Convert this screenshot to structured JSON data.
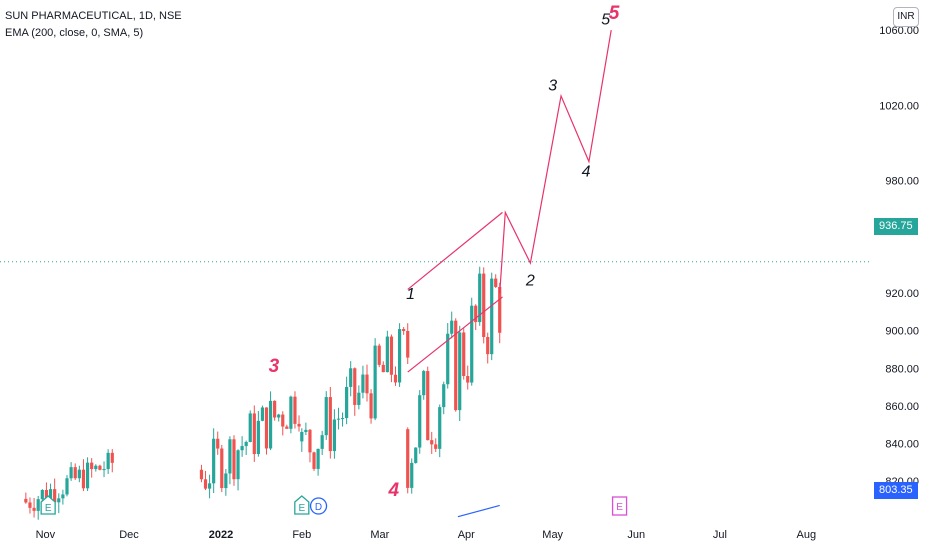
{
  "header": {
    "symbol_line": "SUN PHARMACEUTICAL, 1D, NSE",
    "indicator_line": "EMA (200, close, 0, SMA, 5)"
  },
  "currency": "INR",
  "colors": {
    "up": "#26a69a",
    "down": "#ef5350",
    "wave_line": "#e8336b",
    "wave_label_pink": "#e8336b",
    "wave_label_dark": "#131722",
    "ema": "#2962ff",
    "axis_text": "#131722",
    "grid_dotted": "#26a69a",
    "earnings_icon": "#26a69a",
    "dividend_icon": "#2962ff",
    "future_event_icon": "#d850d8"
  },
  "last_price": "936.75",
  "ema_value": "803.35",
  "price_axis": {
    "ticks": [
      "820.00",
      "840.00",
      "860.00",
      "880.00",
      "900.00",
      "920.00",
      "980.00",
      "1020.00",
      "1060.00"
    ]
  },
  "time_axis": {
    "labels": [
      "Nov",
      "Dec",
      "2022",
      "Feb",
      "Mar",
      "Apr",
      "May",
      "Jun",
      "Jul",
      "Aug"
    ],
    "bold": [
      "2022"
    ]
  },
  "chart_data": {
    "type": "candlestick",
    "ylim": [
      795,
      1067
    ],
    "x_range": [
      "2021-10-29",
      "2022-08-12"
    ],
    "candle_blocks": [
      {
        "start": "2021-10-25",
        "end": "2021-11-25",
        "approx_price_range": [
          800,
          835
        ]
      },
      {
        "start": "2021-12-27",
        "end": "2022-01-31",
        "approx_price_range": [
          805,
          875
        ]
      },
      {
        "start": "2022-02-01",
        "end": "2022-03-11",
        "approx_price_range": [
          815,
          902
        ]
      },
      {
        "start": "2022-03-11",
        "end": "2022-04-13",
        "approx_price_range": [
          808,
          940
        ]
      }
    ],
    "series": [
      {
        "name": "EMA (200, close, 0, SMA, 5)",
        "points": [
          [
            "2022-03-29",
            801
          ],
          [
            "2022-04-13",
            807
          ]
        ]
      }
    ],
    "wave_projection": [
      [
        "2022-04-13",
        920
      ],
      [
        "2022-04-15",
        963
      ],
      [
        "2022-04-24",
        936
      ],
      [
        "2022-05-05",
        1025
      ],
      [
        "2022-05-15",
        990
      ],
      [
        "2022-05-23",
        1060
      ]
    ],
    "channel": {
      "upper": [
        [
          "2022-03-11",
          922
        ],
        [
          "2022-04-14",
          963
        ]
      ],
      "lower": [
        [
          "2022-03-11",
          878
        ],
        [
          "2022-04-14",
          918
        ]
      ]
    },
    "wave_labels": [
      {
        "text": "3",
        "date": "2022-01-22",
        "price": 878,
        "color": "pink"
      },
      {
        "text": "4",
        "date": "2022-03-06",
        "price": 812,
        "color": "pink"
      },
      {
        "text": "1",
        "date": "2022-03-12",
        "price": 917,
        "color": "dark"
      },
      {
        "text": "2",
        "date": "2022-04-24",
        "price": 924,
        "color": "dark"
      },
      {
        "text": "3",
        "date": "2022-05-02",
        "price": 1028,
        "color": "dark"
      },
      {
        "text": "4",
        "date": "2022-05-14",
        "price": 982,
        "color": "dark"
      },
      {
        "text": "5",
        "date": "2022-05-21",
        "price": 1063,
        "color": "dark"
      },
      {
        "text": "5",
        "date": "2022-05-24",
        "price": 1066,
        "color": "pink"
      }
    ],
    "events": [
      {
        "type": "earnings",
        "text": "E",
        "date": "2021-11-02"
      },
      {
        "type": "earnings",
        "text": "E",
        "date": "2022-02-01"
      },
      {
        "type": "dividend",
        "text": "D",
        "date": "2022-02-07"
      },
      {
        "type": "earnings_future",
        "text": "E",
        "date": "2022-05-26"
      }
    ]
  }
}
